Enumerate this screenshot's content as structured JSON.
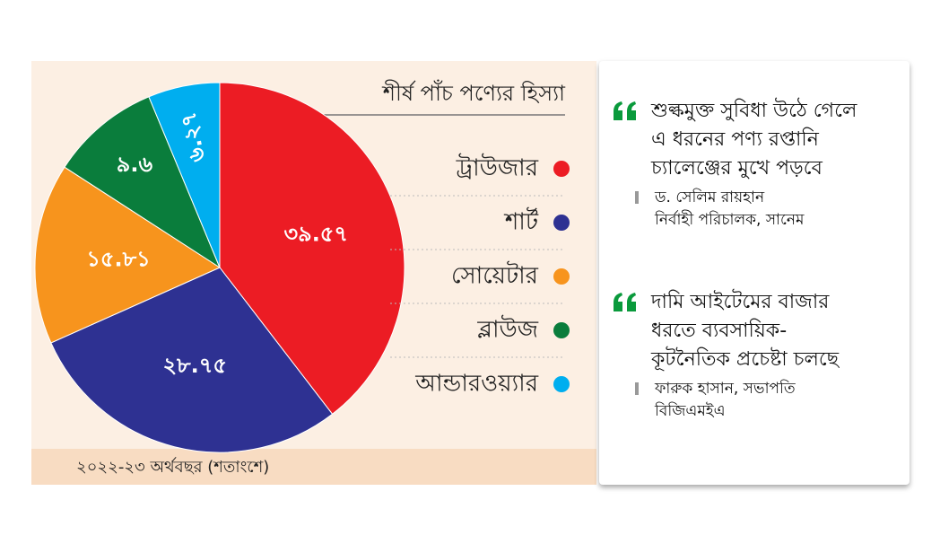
{
  "chart_data": {
    "type": "pie",
    "title": "শীর্ষ পাঁচ পণ্যের হিস্যা",
    "footnote": "২০২২-২৩ অর্থবছর (শতাংশে)",
    "categories": [
      "ট্রাউজার",
      "শার্ট",
      "সোয়েটার",
      "ব্লাউজ",
      "আন্ডারওয়্যার"
    ],
    "values": [
      39.57,
      28.75,
      15.81,
      9.6,
      6.27
    ],
    "value_labels": [
      "৩৯.৫৭",
      "২৮.৭৫",
      "১৫.৮১",
      "৯.৬",
      "৬.২৭"
    ],
    "colors": [
      "#ec1c24",
      "#2e3192",
      "#f7941d",
      "#0a7d3c",
      "#00aeef"
    ]
  },
  "quotes": [
    {
      "lines": [
        "শুল্কমুক্ত সুবিধা উঠে গেলে",
        "এ ধরনের পণ্য রপ্তানি",
        "চ্যালেঞ্জের মুখে পড়বে"
      ],
      "speaker": [
        "ড. সেলিম রায়হান",
        "নির্বাহী পরিচালক, সানেম"
      ]
    },
    {
      "lines": [
        "দামি আইটেমের বাজার",
        "ধরতে ব্যবসায়িক-",
        "কূটনৈতিক প্রচেষ্টা চলছে"
      ],
      "speaker": [
        "ফারুক হাসান, সভাপতি",
        "বিজিএমইএ"
      ]
    }
  ]
}
